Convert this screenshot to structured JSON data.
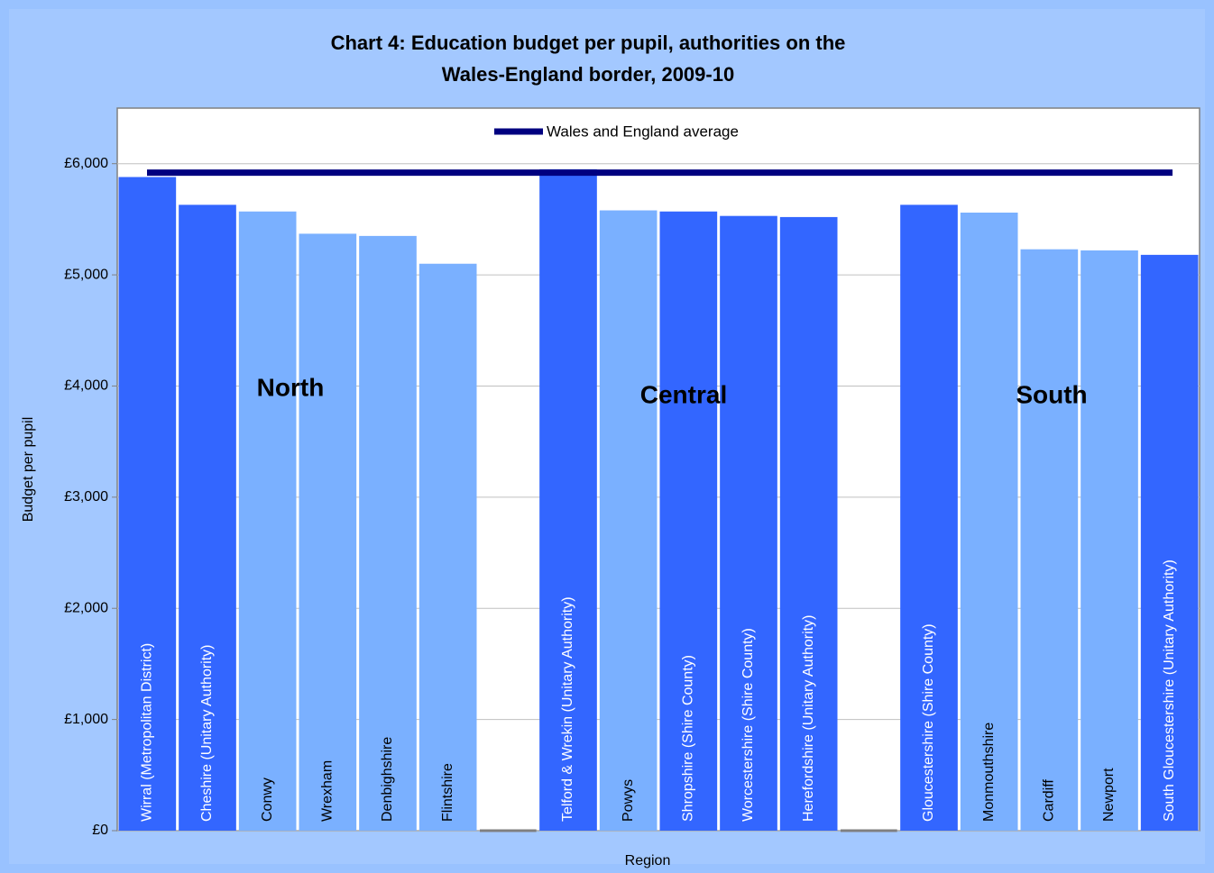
{
  "chart_data": {
    "type": "bar",
    "title": [
      "Chart 4: Education budget per pupil, authorities on the",
      "Wales-England border, 2009-10"
    ],
    "y_label": "Budget per pupil",
    "x_label": "Region",
    "categories": [
      "Wirral (Metropolitan District)",
      "Cheshire (Unitary Authority)",
      "Conwy",
      "Wrexham",
      "Denbighshire",
      "Flintshire",
      null,
      "Telford & Wrekin (Unitary Authority)",
      "Powys",
      "Shropshire (Shire County)",
      "Worcestershire (Shire County)",
      "Herefordshire (Unitary Authority)",
      null,
      "Gloucestershire (Shire County)",
      "Monmouthshire",
      "Cardiff",
      "Newport",
      "South Gloucestershire (Unitary Authority)"
    ],
    "values": [
      5880,
      5630,
      5570,
      5370,
      5350,
      5100,
      null,
      5950,
      5580,
      5570,
      5530,
      5520,
      null,
      5630,
      5560,
      5230,
      5220,
      5180
    ],
    "colors": [
      "#3366ff",
      "#3366ff",
      "#7ab0ff",
      "#7ab0ff",
      "#7ab0ff",
      "#7ab0ff",
      null,
      "#3366ff",
      "#7ab0ff",
      "#3366ff",
      "#3366ff",
      "#3366ff",
      null,
      "#3366ff",
      "#7ab0ff",
      "#7ab0ff",
      "#7ab0ff",
      "#3366ff"
    ],
    "label_colors": [
      "#ffffff",
      "#ffffff",
      "#000000",
      "#000000",
      "#000000",
      "#000000",
      null,
      "#ffffff",
      "#000000",
      "#ffffff",
      "#ffffff",
      "#ffffff",
      null,
      "#ffffff",
      "#000000",
      "#000000",
      "#000000",
      "#ffffff"
    ],
    "reference_line": {
      "name": "Wales and England average",
      "value": 5920,
      "color": "#000080"
    },
    "annotations": [
      "North",
      "Central",
      "South"
    ],
    "ylim": [
      0,
      6500
    ],
    "yticks": [
      {
        "value": 0,
        "label": "£0"
      },
      {
        "value": 1000,
        "label": "£1,000"
      },
      {
        "value": 2000,
        "label": "£2,000"
      },
      {
        "value": 3000,
        "label": "£3,000"
      },
      {
        "value": 4000,
        "label": "£4,000"
      },
      {
        "value": 5000,
        "label": "£5,000"
      },
      {
        "value": 6000,
        "label": "£6,000"
      }
    ],
    "grid": true
  }
}
